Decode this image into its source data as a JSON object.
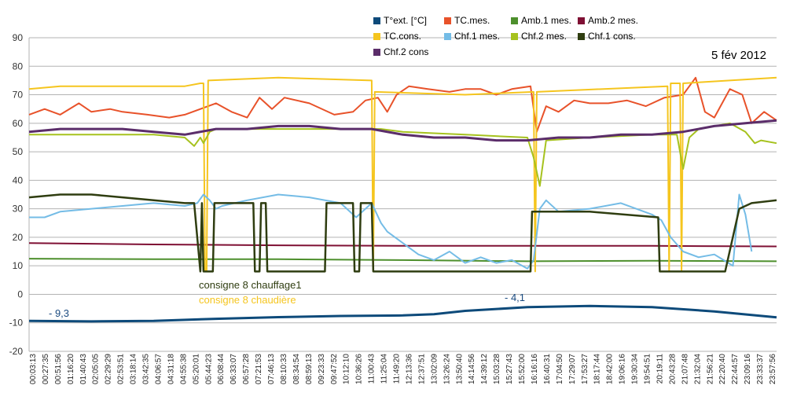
{
  "chart_data": {
    "type": "line",
    "date_label": "5 fév 2012",
    "ylim": [
      -20,
      90
    ],
    "yticks": [
      -20,
      -10,
      0,
      10,
      20,
      30,
      40,
      50,
      60,
      70,
      80,
      90
    ],
    "grid": true,
    "legend_position": "top-right",
    "x_labels": [
      "00:03:13",
      "00:27:35",
      "00:51:56",
      "01:16:20",
      "01:40:43",
      "02:05:05",
      "02:29:29",
      "02:53:51",
      "03:18:14",
      "03:42:35",
      "04:06:57",
      "04:31:18",
      "04:55:38",
      "05:20:01",
      "05:44:23",
      "06:08:44",
      "06:33:07",
      "06:57:28",
      "07:21:53",
      "07:46:13",
      "08:10:33",
      "08:34:54",
      "08:59:13",
      "09:23:33",
      "09:47:52",
      "10:12:10",
      "10:36:26",
      "11:00:43",
      "11:25:04",
      "11:49:20",
      "12:13:36",
      "12:37:51",
      "13:02:09",
      "13:26:24",
      "13:50:40",
      "14:14:56",
      "14:39:12",
      "15:03:28",
      "15:27:43",
      "15:52:00",
      "16:16:16",
      "16:40:31",
      "17:04:50",
      "17:29:07",
      "17:53:27",
      "18:17:44",
      "18:42:00",
      "19:06:16",
      "19:30:34",
      "19:54:51",
      "20:19:11",
      "20:43:28",
      "21:07:48",
      "21:32:04",
      "21:56:21",
      "22:20:40",
      "22:44:57",
      "23:09:16",
      "23:33:37",
      "23:57:56"
    ],
    "annotations": [
      {
        "text": "consigne 8 chauffage1",
        "color": "#2f3d10"
      },
      {
        "text": "consigne 8 chaudière",
        "color": "#f5c51e"
      },
      {
        "text": "- 9,3",
        "color": "#1a4a80"
      },
      {
        "text": "- 4,1",
        "color": "#1a4a80"
      }
    ],
    "series": [
      {
        "name": "T°ext. [°C]",
        "color": "#0d4a7a",
        "width": 3,
        "x": [
          0,
          2,
          4,
          6,
          8,
          10,
          12,
          13,
          14,
          16,
          18,
          20,
          22,
          24
        ],
        "y": [
          -9.3,
          -9.5,
          -9.3,
          -8.6,
          -8.0,
          -7.6,
          -7.4,
          -7.0,
          -5.8,
          -4.5,
          -4.1,
          -4.5,
          -6.0,
          -8.1
        ]
      },
      {
        "name": "TC.mes.",
        "color": "#e8522a",
        "width": 2,
        "x": [
          0,
          0.5,
          1,
          1.6,
          2,
          2.6,
          3,
          3.8,
          4.5,
          5,
          5.5,
          6,
          6.5,
          7,
          7.4,
          7.8,
          8.2,
          9,
          9.8,
          10.4,
          10.8,
          11.2,
          11.5,
          11.8,
          12.2,
          12.8,
          13.5,
          14,
          14.5,
          15,
          15.5,
          16.1,
          16.3,
          16.6,
          17,
          17.5,
          18,
          18.6,
          19.2,
          19.8,
          20.4,
          21,
          21.4,
          21.7,
          22,
          22.5,
          22.9,
          23.2,
          23.6,
          24
        ],
        "y": [
          63,
          65,
          63,
          67,
          64,
          65,
          64,
          63,
          62,
          63,
          65,
          67,
          64,
          62,
          69,
          65,
          69,
          67,
          63,
          64,
          68,
          69,
          64,
          70,
          73,
          72,
          71,
          72,
          72,
          70,
          72,
          73,
          57,
          66,
          64,
          68,
          67,
          67,
          68,
          66,
          69,
          70,
          76,
          64,
          62,
          72,
          70,
          60,
          64,
          61
        ]
      },
      {
        "name": "Amb.1 mes.",
        "color": "#4d8f2c",
        "width": 2,
        "x": [
          0,
          4,
          8,
          12,
          16,
          20,
          24
        ],
        "y": [
          12.5,
          12.3,
          12.3,
          12.0,
          11.6,
          11.8,
          11.6
        ]
      },
      {
        "name": "Amb.2 mes.",
        "color": "#7f1034",
        "width": 2,
        "x": [
          0,
          4,
          8,
          12,
          16,
          20,
          24
        ],
        "y": [
          18,
          17.5,
          17.2,
          17.0,
          17.0,
          17.0,
          16.8
        ]
      },
      {
        "name": "TC.cons.",
        "color": "#f5c51e",
        "width": 2,
        "x": [
          0,
          1,
          3,
          5,
          5.5,
          5.6,
          5.65,
          5.7,
          5.75,
          8,
          11,
          11.05,
          11.1,
          14,
          16.2,
          16.25,
          16.3,
          20.5,
          20.55,
          20.6,
          20.9,
          20.95,
          21,
          24
        ],
        "y": [
          72,
          73,
          73,
          73,
          74,
          74,
          8,
          8,
          75,
          76,
          75,
          8,
          71,
          70,
          71,
          8,
          71,
          73,
          8,
          74,
          74,
          8,
          74,
          76
        ]
      },
      {
        "name": "Chf.1 mes.",
        "color": "#74bce6",
        "width": 2,
        "x": [
          0,
          0.5,
          1,
          2,
          3,
          4,
          5,
          5.4,
          5.6,
          5.8,
          6.0,
          6.2,
          7,
          8,
          9,
          10,
          10.5,
          11,
          11.3,
          11.5,
          12,
          12.5,
          13,
          13.5,
          14,
          14.5,
          15,
          15.5,
          16,
          16.2,
          16.4,
          16.6,
          17,
          18,
          19,
          20,
          20.3,
          20.6,
          21,
          21.5,
          22,
          22.3,
          22.6,
          22.8,
          23,
          23.2
        ],
        "y": [
          27,
          27,
          29,
          30,
          31,
          32,
          31,
          32,
          35,
          33,
          30,
          31,
          33,
          35,
          34,
          32,
          27,
          32,
          25,
          22,
          18,
          14,
          12,
          15,
          11,
          13,
          11,
          12,
          9,
          12,
          30,
          33,
          29,
          30,
          32,
          28,
          26,
          20,
          15,
          13,
          14,
          12,
          10,
          35,
          28,
          15
        ]
      },
      {
        "name": "Chf.2 mes.",
        "color": "#a6c21e",
        "width": 2,
        "x": [
          0,
          2,
          4,
          5,
          5.3,
          5.5,
          5.6,
          5.8,
          6,
          8,
          10,
          11.3,
          12,
          14,
          16,
          16.2,
          16.4,
          16.6,
          18,
          20,
          20.8,
          21.0,
          21.2,
          21.5,
          22.5,
          23,
          23.3,
          23.5,
          24
        ],
        "y": [
          56,
          56,
          56,
          55,
          52,
          55,
          53,
          57,
          58,
          58,
          58,
          58,
          57,
          56,
          55,
          48,
          38,
          54,
          55,
          56,
          56,
          44,
          55,
          58,
          60,
          57,
          53,
          54,
          53
        ]
      },
      {
        "name": "Chf.1 cons.",
        "color": "#2f3d10",
        "width": 2.5,
        "x": [
          0,
          1,
          2,
          3,
          4,
          5,
          5.3,
          5.5,
          5.55,
          5.6,
          5.9,
          5.95,
          7.2,
          7.25,
          7.4,
          7.45,
          7.6,
          7.65,
          9.5,
          9.55,
          10.4,
          10.45,
          10.6,
          10.65,
          11.0,
          11.05,
          12,
          14,
          16.1,
          16.15,
          18,
          20.2,
          20.25,
          22.3,
          22.35,
          22.8,
          23.2,
          24
        ],
        "y": [
          34,
          35,
          35,
          34,
          33,
          32,
          32,
          8,
          32,
          8,
          8,
          32,
          32,
          8,
          8,
          32,
          32,
          8,
          8,
          32,
          32,
          8,
          8,
          32,
          32,
          8,
          8,
          8,
          8,
          29,
          29,
          27,
          8,
          8,
          8,
          30,
          32,
          33
        ]
      },
      {
        "name": "Chf.2 cons",
        "color": "#5b2d6a",
        "width": 3,
        "x": [
          0,
          1,
          2,
          3,
          4,
          5,
          6,
          7,
          8,
          9,
          10,
          11,
          12,
          13,
          14,
          15,
          16,
          17,
          18,
          19,
          20,
          21,
          22,
          23,
          24
        ],
        "y": [
          57,
          58,
          58,
          58,
          57,
          56,
          58,
          58,
          59,
          59,
          58,
          58,
          56,
          55,
          55,
          54,
          54,
          55,
          55,
          56,
          56,
          57,
          59,
          60,
          61
        ]
      }
    ]
  }
}
